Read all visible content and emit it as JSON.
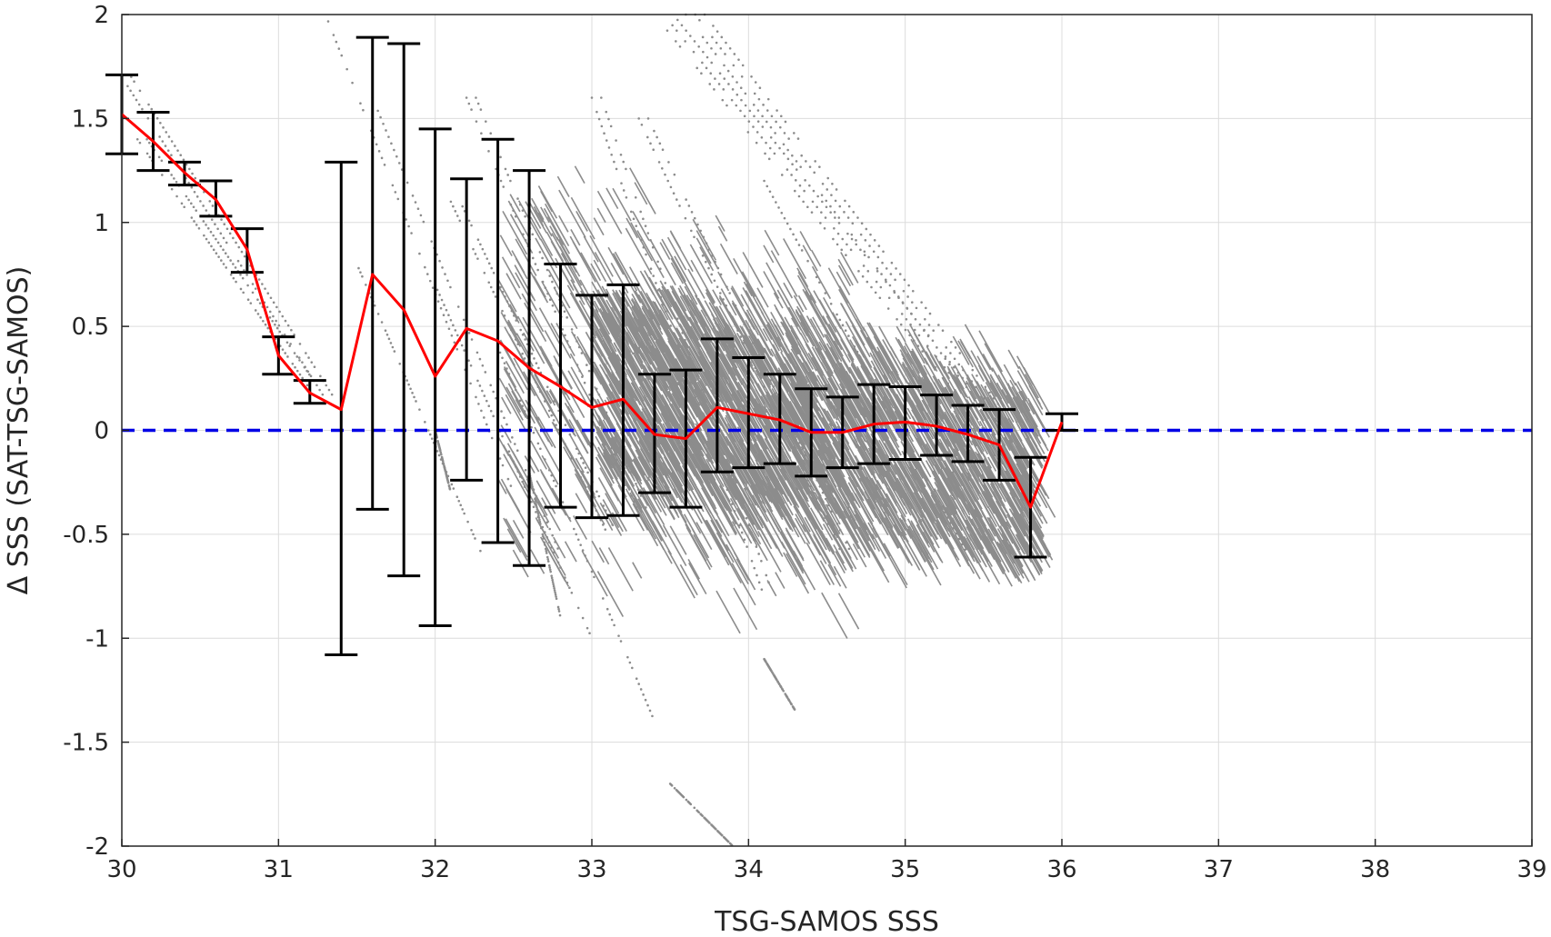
{
  "chart_data": {
    "type": "scatter",
    "title": "",
    "xlabel": "TSG-SAMOS SSS",
    "ylabel": "Δ SSS (SAT-TSG-SAMOS)",
    "xlim": [
      30,
      39
    ],
    "ylim": [
      -2,
      2
    ],
    "xticks": [
      30,
      31,
      32,
      33,
      34,
      35,
      36,
      37,
      38,
      39
    ],
    "yticks": [
      -2,
      -1.5,
      -1,
      -0.5,
      0,
      0.5,
      1,
      1.5,
      2
    ],
    "grid": true,
    "colors": {
      "scatter": "#8c8c8c",
      "errorbar": "#000000",
      "mean_line": "#ff0000",
      "zero_line": "#0000e6"
    },
    "reference_line": {
      "y": 0,
      "style": "dashed"
    },
    "mean_line": {
      "x": [
        30.0,
        30.2,
        30.4,
        30.6,
        30.8,
        31.0,
        31.2,
        31.4,
        31.6,
        31.8,
        32.0,
        32.2,
        32.4,
        32.6,
        32.8,
        33.0,
        33.2,
        33.4,
        33.6,
        33.8,
        34.0,
        34.2,
        34.4,
        34.6,
        34.8,
        35.0,
        35.2,
        35.4,
        35.6,
        35.8,
        36.0
      ],
      "y": [
        1.52,
        1.39,
        1.24,
        1.11,
        0.87,
        0.36,
        0.18,
        0.1,
        0.75,
        0.58,
        0.26,
        0.49,
        0.43,
        0.3,
        0.21,
        0.11,
        0.15,
        -0.02,
        -0.04,
        0.11,
        0.08,
        0.05,
        -0.01,
        -0.01,
        0.03,
        0.04,
        0.02,
        -0.02,
        -0.07,
        -0.37,
        0.04
      ]
    },
    "errorbars": [
      {
        "x": 30.0,
        "lower": 1.33,
        "upper": 1.71
      },
      {
        "x": 30.2,
        "lower": 1.25,
        "upper": 1.53
      },
      {
        "x": 30.4,
        "lower": 1.18,
        "upper": 1.29
      },
      {
        "x": 30.6,
        "lower": 1.03,
        "upper": 1.2
      },
      {
        "x": 30.8,
        "lower": 0.76,
        "upper": 0.97
      },
      {
        "x": 31.0,
        "lower": 0.27,
        "upper": 0.45
      },
      {
        "x": 31.2,
        "lower": 0.13,
        "upper": 0.24
      },
      {
        "x": 31.4,
        "lower": -1.08,
        "upper": 1.29
      },
      {
        "x": 31.6,
        "lower": -0.38,
        "upper": 1.89
      },
      {
        "x": 31.8,
        "lower": -0.7,
        "upper": 1.86
      },
      {
        "x": 32.0,
        "lower": -0.94,
        "upper": 1.45
      },
      {
        "x": 32.2,
        "lower": -0.24,
        "upper": 1.21
      },
      {
        "x": 32.4,
        "lower": -0.54,
        "upper": 1.4
      },
      {
        "x": 32.6,
        "lower": -0.65,
        "upper": 1.25
      },
      {
        "x": 32.8,
        "lower": -0.37,
        "upper": 0.8
      },
      {
        "x": 33.0,
        "lower": -0.42,
        "upper": 0.65
      },
      {
        "x": 33.2,
        "lower": -0.41,
        "upper": 0.7
      },
      {
        "x": 33.4,
        "lower": -0.3,
        "upper": 0.27
      },
      {
        "x": 33.6,
        "lower": -0.37,
        "upper": 0.29
      },
      {
        "x": 33.8,
        "lower": -0.2,
        "upper": 0.44
      },
      {
        "x": 34.0,
        "lower": -0.18,
        "upper": 0.35
      },
      {
        "x": 34.2,
        "lower": -0.16,
        "upper": 0.27
      },
      {
        "x": 34.4,
        "lower": -0.22,
        "upper": 0.2
      },
      {
        "x": 34.6,
        "lower": -0.18,
        "upper": 0.16
      },
      {
        "x": 34.8,
        "lower": -0.16,
        "upper": 0.22
      },
      {
        "x": 35.0,
        "lower": -0.14,
        "upper": 0.21
      },
      {
        "x": 35.2,
        "lower": -0.12,
        "upper": 0.17
      },
      {
        "x": 35.4,
        "lower": -0.15,
        "upper": 0.12
      },
      {
        "x": 35.6,
        "lower": -0.24,
        "upper": 0.1
      },
      {
        "x": 35.8,
        "lower": -0.61,
        "upper": -0.13
      },
      {
        "x": 36.0,
        "lower": 0.0,
        "upper": 0.08
      }
    ],
    "scatter_streaks": [
      {
        "x0": 30.0,
        "y0": 1.7,
        "x1": 31.3,
        "y1": 0.15,
        "n": 2
      },
      {
        "x0": 30.1,
        "y0": 1.4,
        "x1": 31.2,
        "y1": 0.2,
        "n": 2
      },
      {
        "x0": 31.3,
        "y0": 2.0,
        "x1": 32.5,
        "y1": -0.3,
        "n": 1
      },
      {
        "x0": 31.6,
        "y0": 1.6,
        "x1": 32.8,
        "y1": -0.6,
        "n": 1
      },
      {
        "x0": 31.5,
        "y0": 0.8,
        "x1": 32.3,
        "y1": -0.6,
        "n": 1
      },
      {
        "x0": 32.2,
        "y0": 1.6,
        "x1": 33.3,
        "y1": -0.4,
        "n": 2
      },
      {
        "x0": 32.1,
        "y0": 1.1,
        "x1": 33.1,
        "y1": -0.5,
        "n": 2
      },
      {
        "x0": 32.4,
        "y0": 0.4,
        "x1": 33.4,
        "y1": -1.4,
        "n": 1
      },
      {
        "x0": 32.0,
        "y0": 0.7,
        "x1": 33.0,
        "y1": -1.0,
        "n": 1
      },
      {
        "x0": 33.0,
        "y0": 1.6,
        "x1": 34.1,
        "y1": -0.8,
        "n": 2
      },
      {
        "x0": 33.3,
        "y0": 1.5,
        "x1": 34.6,
        "y1": -0.6,
        "n": 2
      },
      {
        "x0": 33.4,
        "y0": 2.0,
        "x1": 35.3,
        "y1": 0.2,
        "n": 3
      },
      {
        "x0": 33.6,
        "y0": 2.0,
        "x1": 35.5,
        "y1": 0.1,
        "n": 3
      },
      {
        "x0": 34.1,
        "y0": 1.2,
        "x1": 35.4,
        "y1": -0.6,
        "n": 1
      },
      {
        "x0": 34.1,
        "y0": -1.1,
        "x1": 34.3,
        "y1": -1.35,
        "n": 1
      },
      {
        "x0": 33.5,
        "y0": -1.7,
        "x1": 33.9,
        "y1": -2.0,
        "n": 1
      },
      {
        "x0": 32.6,
        "y0": -0.2,
        "x1": 32.8,
        "y1": -0.9,
        "n": 1
      },
      {
        "x0": 32.0,
        "y0": 0.0,
        "x1": 32.1,
        "y1": -0.3,
        "n": 1
      }
    ],
    "scatter_clusters": [
      {
        "xmin": 33.0,
        "xmax": 35.8,
        "ymin": -0.55,
        "ymax": 0.7,
        "density": "high"
      },
      {
        "xmin": 32.4,
        "xmax": 34.6,
        "ymin": -0.8,
        "ymax": 1.3,
        "density": "medium"
      }
    ]
  }
}
